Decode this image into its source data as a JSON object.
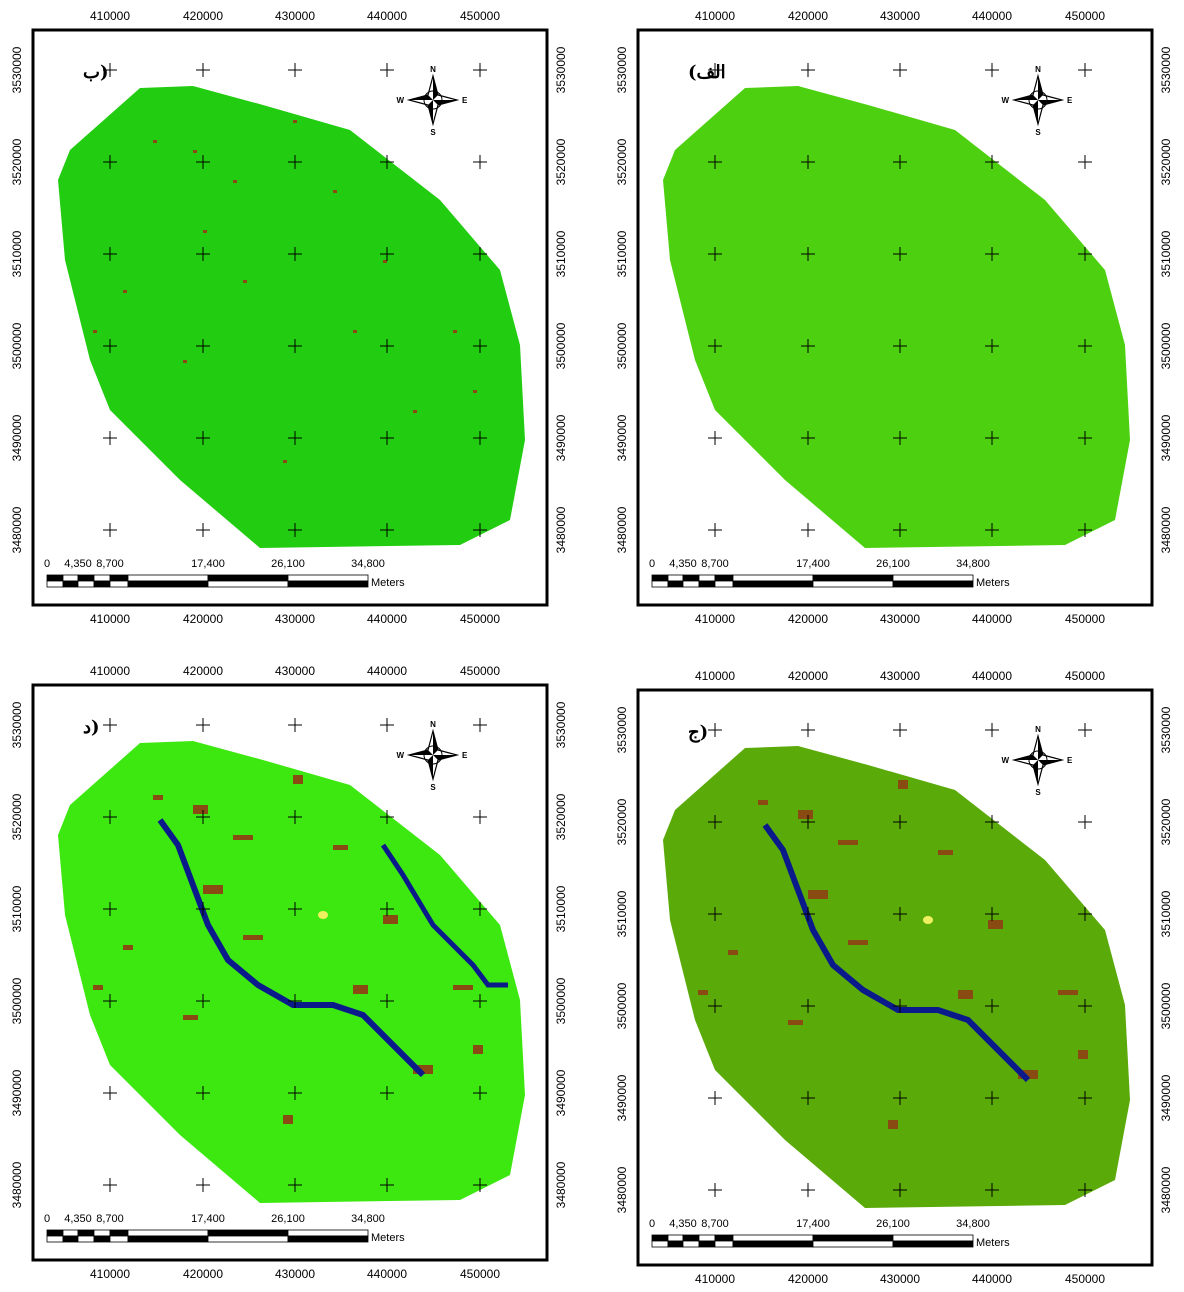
{
  "panels": [
    {
      "label": "ب)"
    },
    {
      "label": "(الف"
    },
    {
      "label": "د)"
    },
    {
      "label": "ج)"
    }
  ],
  "x_tick_labels": [
    "410000",
    "420000",
    "430000",
    "440000",
    "450000"
  ],
  "y_tick_labels": [
    "3530000",
    "3520000",
    "3510000",
    "3500000",
    "3490000",
    "3480000"
  ],
  "scale_labels": [
    "0",
    "4,350",
    "8,700",
    "17,400",
    "26,100",
    "34,800"
  ],
  "scale_unit": "Meters",
  "compass": {
    "n": "N",
    "e": "E",
    "s": "S",
    "w": "W"
  }
}
